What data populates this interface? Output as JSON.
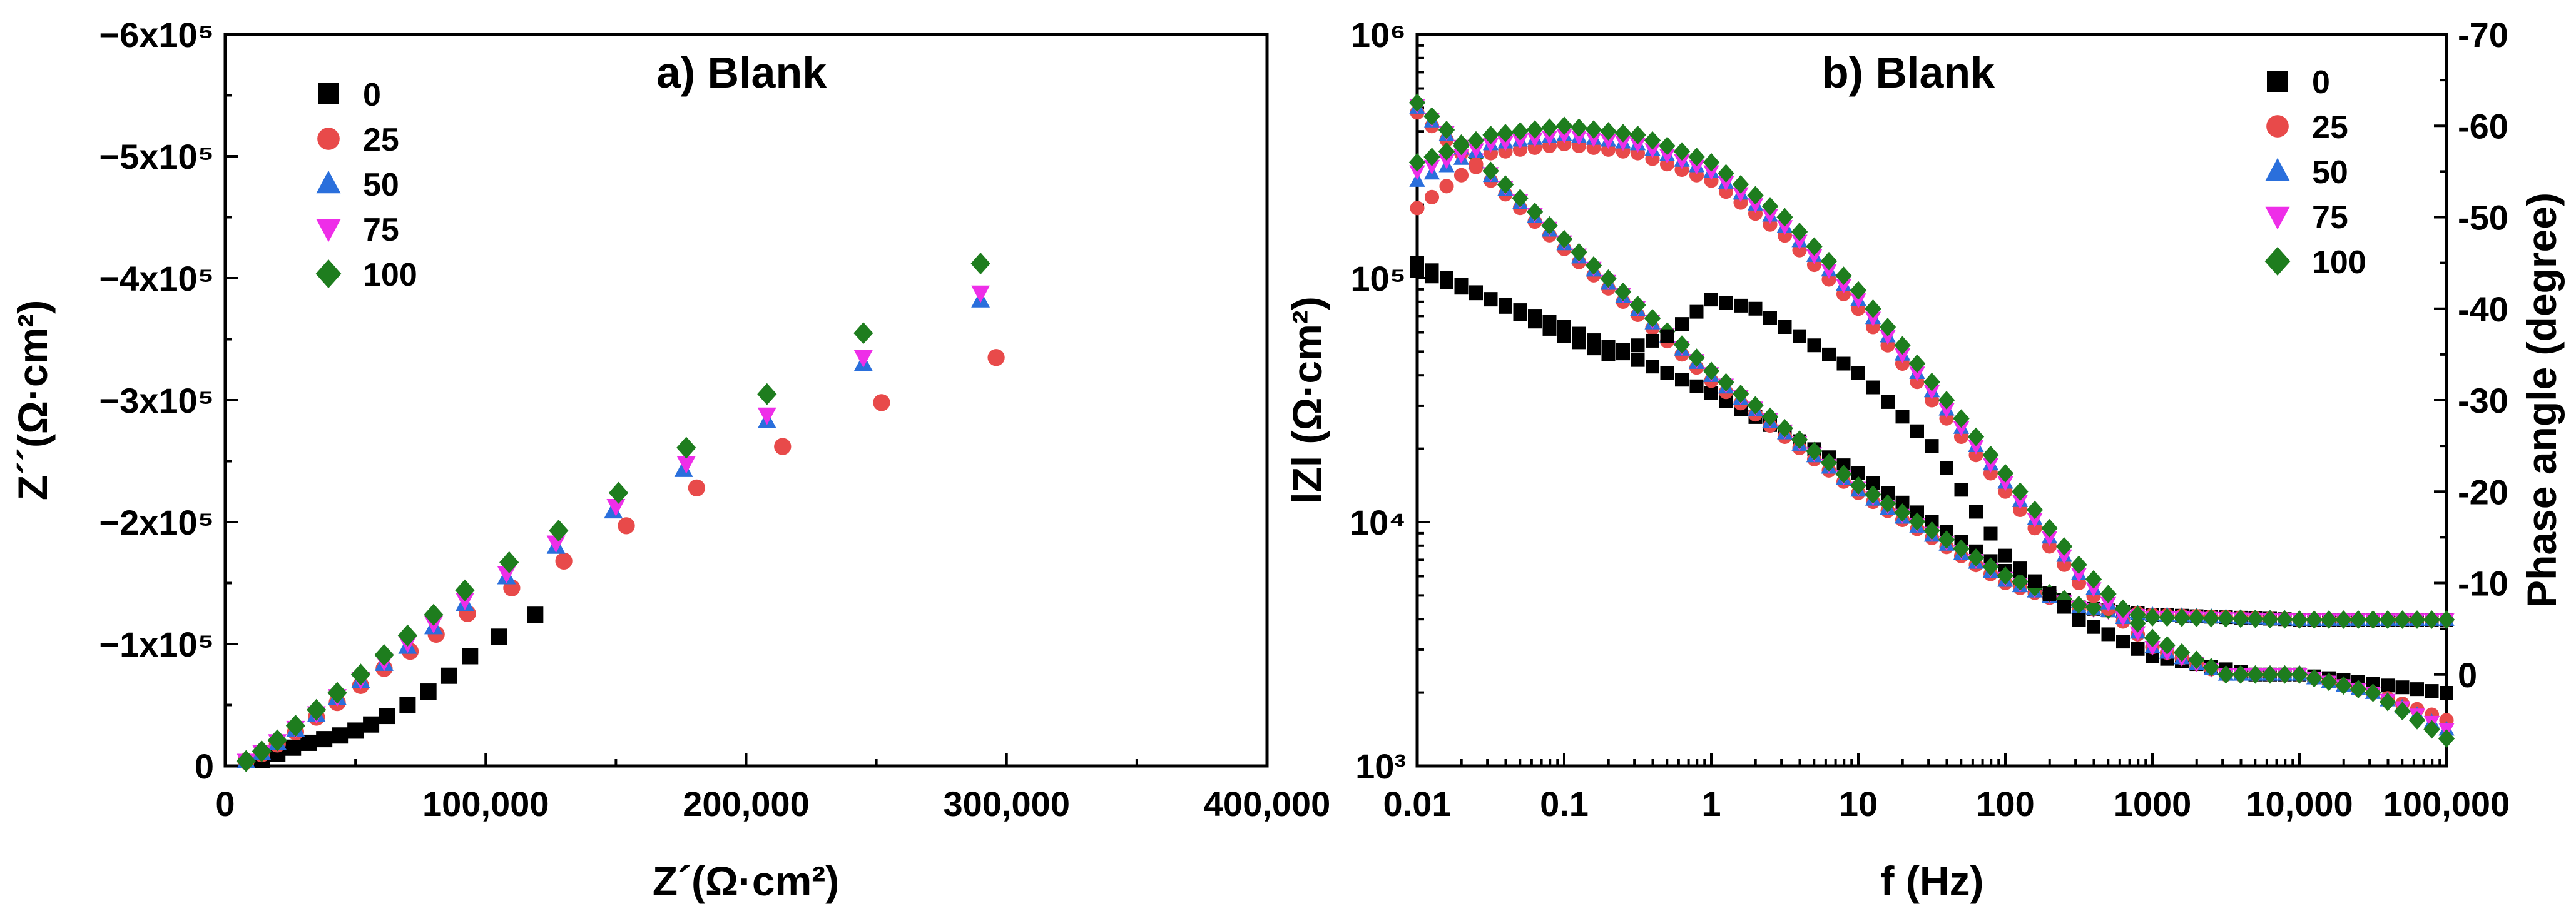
{
  "colors": {
    "s0": "#000000",
    "s25": "#e84a4a",
    "s50": "#2a6fdc",
    "s75": "#ee2ee8",
    "s100": "#1e7d1e"
  },
  "chart_data": [
    {
      "type": "scatter",
      "title": "a) Blank",
      "xlabel": "Z´(Ω·cm²)",
      "ylabel": "Z´´(Ω·cm²)",
      "xlim": [
        0,
        400000
      ],
      "ylim": [
        0,
        -600000
      ],
      "x_ticks": [
        0,
        100000,
        200000,
        300000,
        400000
      ],
      "x_tick_labels": [
        "0",
        "100,000",
        "200,000",
        "300,000",
        "400,000"
      ],
      "y_ticks": [
        0,
        -100000,
        -200000,
        -300000,
        -400000,
        -500000,
        -600000
      ],
      "y_tick_labels": [
        "0",
        "−1x10⁵",
        "−2x10⁵",
        "−3x10⁵",
        "−4x10⁵",
        "−5x10⁵",
        "−6x10⁵"
      ],
      "legend_position": "top-left",
      "series": [
        {
          "name": "0",
          "marker": "square",
          "color": "#000000",
          "x": [
            14000,
            20000,
            26000,
            32000,
            38000,
            44000,
            50000,
            56000,
            62000,
            70000,
            78000,
            86000,
            94000,
            105000,
            119000
          ],
          "y": [
            -5000,
            -10000,
            -15000,
            -19000,
            -22000,
            -25000,
            -29000,
            -34000,
            -41000,
            -50000,
            -61000,
            -74000,
            -90000,
            -106000,
            -124000
          ]
        },
        {
          "name": "25",
          "marker": "circle",
          "color": "#e84a4a",
          "x": [
            8000,
            14000,
            20000,
            27000,
            35000,
            43000,
            52000,
            61000,
            71000,
            81000,
            93000,
            110000,
            130000,
            154000,
            181000,
            214000,
            252000,
            296000
          ],
          "y": [
            -4000,
            -10000,
            -18000,
            -28000,
            -40000,
            -52000,
            -66000,
            -80000,
            -94000,
            -108000,
            -125000,
            -146000,
            -168000,
            -197000,
            -228000,
            -262000,
            -298000,
            -335000
          ]
        },
        {
          "name": "50",
          "marker": "triangle",
          "color": "#2a6fdc",
          "x": [
            8000,
            14000,
            20000,
            27000,
            35000,
            43000,
            52000,
            61000,
            70000,
            80000,
            92000,
            108000,
            127000,
            149000,
            176000,
            208000,
            245000,
            290000
          ],
          "y": [
            -4000,
            -11000,
            -19000,
            -30000,
            -42000,
            -56000,
            -70000,
            -84000,
            -98000,
            -114000,
            -133000,
            -155000,
            -180000,
            -209000,
            -243000,
            -283000,
            -330000,
            -382000
          ]
        },
        {
          "name": "75",
          "marker": "triangle-down",
          "color": "#ee2ee8",
          "x": [
            8000,
            14000,
            20000,
            27000,
            35000,
            43000,
            52000,
            61000,
            70000,
            80000,
            92000,
            108000,
            127000,
            150000,
            177000,
            208000,
            245000,
            290000
          ],
          "y": [
            -4000,
            -11000,
            -20000,
            -31000,
            -43000,
            -57000,
            -71000,
            -86000,
            -101000,
            -117000,
            -136000,
            -158000,
            -183000,
            -213000,
            -248000,
            -288000,
            -335000,
            -388000
          ]
        },
        {
          "name": "100",
          "marker": "diamond",
          "color": "#1e7d1e",
          "x": [
            8000,
            14000,
            20000,
            27000,
            35000,
            43000,
            52000,
            61000,
            70000,
            80000,
            92000,
            109000,
            128000,
            151000,
            177000,
            208000,
            245000,
            290000
          ],
          "y": [
            -4000,
            -12000,
            -21000,
            -33000,
            -46000,
            -60000,
            -75000,
            -91000,
            -107000,
            -124000,
            -144000,
            -167000,
            -193000,
            -224000,
            -261000,
            -305000,
            -355000,
            -412000
          ]
        }
      ]
    },
    {
      "type": "scatter",
      "title": "b) Blank",
      "xlabel": "f (Hz)",
      "ylabel": "lZl (Ω·cm²)",
      "y2label": "Phase angle (degree)",
      "xscale": "log",
      "yscale": "log",
      "xlim": [
        0.01,
        100000
      ],
      "ylim": [
        1000,
        1000000
      ],
      "y2lim": [
        10,
        -70
      ],
      "x_ticks": [
        0.01,
        0.1,
        1,
        10,
        100,
        1000,
        10000,
        100000
      ],
      "x_tick_labels": [
        "0.01",
        "0.1",
        "1",
        "10",
        "100",
        "1000",
        "10,000",
        "100,000"
      ],
      "y_ticks": [
        1000,
        10000,
        100000,
        1000000
      ],
      "y_tick_labels": [
        "10³",
        "10⁴",
        "10⁵",
        "10⁶"
      ],
      "y2_ticks": [
        0,
        -10,
        -20,
        -30,
        -40,
        -50,
        -60,
        -70
      ],
      "y2_tick_labels": [
        "0",
        "-10",
        "-20",
        "-30",
        "-40",
        "-50",
        "-60",
        "-70"
      ],
      "legend_position": "top-right",
      "modulus_series": [
        {
          "name": "0",
          "marker": "square",
          "color": "#000000",
          "logf": [
            -2,
            -1,
            0,
            1,
            2,
            2.5,
            3,
            4,
            5
          ],
          "logZ": [
            5.03,
            4.8,
            4.53,
            4.2,
            3.8,
            3.65,
            3.62,
            3.6,
            3.6
          ]
        },
        {
          "name": "25",
          "marker": "circle",
          "color": "#e84a4a",
          "logf": [
            -2,
            -1,
            0,
            1,
            2,
            2.5,
            3,
            4,
            5
          ],
          "logZ": [
            5.68,
            5.12,
            4.58,
            4.12,
            3.75,
            3.65,
            3.62,
            3.6,
            3.6
          ]
        },
        {
          "name": "50",
          "marker": "triangle",
          "color": "#2a6fdc",
          "logf": [
            -2,
            -1,
            0,
            1,
            2,
            2.5,
            3,
            4,
            5
          ],
          "logZ": [
            5.7,
            5.14,
            4.6,
            4.13,
            3.76,
            3.65,
            3.62,
            3.6,
            3.6
          ]
        },
        {
          "name": "75",
          "marker": "triangle-down",
          "color": "#ee2ee8",
          "logf": [
            -2,
            -1,
            0,
            1,
            2,
            2.5,
            3,
            4,
            5
          ],
          "logZ": [
            5.71,
            5.15,
            4.61,
            4.14,
            3.77,
            3.65,
            3.61,
            3.6,
            3.6
          ]
        },
        {
          "name": "100",
          "marker": "diamond",
          "color": "#1e7d1e",
          "logf": [
            -2,
            -1,
            0,
            1,
            2,
            2.5,
            3,
            4,
            5
          ],
          "logZ": [
            5.72,
            5.16,
            4.62,
            4.15,
            3.78,
            3.66,
            3.61,
            3.6,
            3.6
          ]
        }
      ],
      "phase_series": [
        {
          "name": "0",
          "marker": "square",
          "color": "#000000",
          "logf": [
            -2,
            -1.5,
            -1,
            -0.7,
            -0.3,
            0,
            0.3,
            1,
            1.5,
            2,
            2.5,
            3,
            3.7,
            4,
            4.5,
            5
          ],
          "phase": [
            -45,
            -41,
            -37,
            -35,
            -37,
            -41,
            -40,
            -33,
            -25,
            -13,
            -6,
            -2,
            0,
            0,
            1,
            2
          ]
        },
        {
          "name": "25",
          "marker": "circle",
          "color": "#e84a4a",
          "logf": [
            -2,
            -1.5,
            -1,
            -0.5,
            0,
            0.5,
            1,
            1.5,
            2,
            2.5,
            3,
            3.5,
            4,
            4.5,
            5
          ],
          "phase": [
            -51,
            -57,
            -58,
            -57,
            -54,
            -48,
            -40,
            -30,
            -20,
            -10,
            -3,
            0,
            0,
            2,
            5
          ]
        },
        {
          "name": "50",
          "marker": "triangle",
          "color": "#2a6fdc",
          "logf": [
            -2,
            -1.5,
            -1,
            -0.5,
            0,
            0.5,
            1,
            1.5,
            2,
            2.5,
            3,
            3.5,
            4,
            4.5,
            5
          ],
          "phase": [
            -54,
            -58,
            -59,
            -58,
            -55,
            -49,
            -41,
            -31,
            -21,
            -11,
            -3,
            0,
            0,
            2,
            6
          ]
        },
        {
          "name": "75",
          "marker": "triangle-down",
          "color": "#ee2ee8",
          "logf": [
            -2,
            -1.5,
            -1,
            -0.5,
            0,
            0.5,
            1,
            1.5,
            2,
            2.5,
            3,
            3.5,
            4,
            4.5,
            5
          ],
          "phase": [
            -55,
            -58,
            -59,
            -58,
            -55,
            -49,
            -41,
            -31,
            -21,
            -11,
            -3,
            0,
            0,
            2,
            6
          ]
        },
        {
          "name": "100",
          "marker": "diamond",
          "color": "#1e7d1e",
          "logf": [
            -2,
            -1.5,
            -1,
            -0.5,
            0,
            0.5,
            1,
            1.5,
            2,
            2.5,
            3,
            3.5,
            4,
            4.5,
            5
          ],
          "phase": [
            -56,
            -59,
            -60,
            -59,
            -56,
            -50,
            -42,
            -32,
            -22,
            -12,
            -4,
            0,
            0,
            2,
            7
          ]
        }
      ]
    }
  ]
}
